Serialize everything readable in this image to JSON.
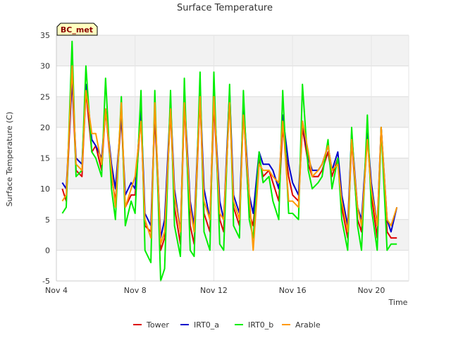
{
  "chart_data": {
    "type": "line",
    "title": "Surface Temperature",
    "xlabel": "Time",
    "ylabel": "Surface Temperature (C)",
    "site_badge": "BC_met",
    "x_unit": "day of November",
    "xlim": [
      4.0,
      21.9
    ],
    "ylim": [
      -5,
      35
    ],
    "y_ticks": [
      -5,
      0,
      5,
      10,
      15,
      20,
      25,
      30,
      35
    ],
    "x_ticks": [
      {
        "value": 4,
        "label": "Nov 4"
      },
      {
        "value": 8,
        "label": "Nov 8"
      },
      {
        "value": 12,
        "label": "Nov 12"
      },
      {
        "value": 16,
        "label": "Nov 16"
      },
      {
        "value": 20,
        "label": "Nov 20"
      }
    ],
    "grid": true,
    "band_shading": true,
    "legend_position": "bottom",
    "series": [
      {
        "name": "Tower",
        "color": "#dd0000",
        "x": [
          4.3,
          4.5,
          4.8,
          5.0,
          5.3,
          5.5,
          5.8,
          6.0,
          6.3,
          6.5,
          6.8,
          7.0,
          7.3,
          7.5,
          7.8,
          8.0,
          8.3,
          8.5,
          8.8,
          9.0,
          9.3,
          9.5,
          9.8,
          10.0,
          10.3,
          10.5,
          10.8,
          11.0,
          11.3,
          11.5,
          11.8,
          12.0,
          12.3,
          12.5,
          12.8,
          13.0,
          13.3,
          13.5,
          13.8,
          14.0,
          14.3,
          14.5,
          14.8,
          15.0,
          15.3,
          15.5,
          15.8,
          16.0,
          16.3,
          16.5,
          16.8,
          17.0,
          17.3,
          17.5,
          17.8,
          18.0,
          18.3,
          18.5,
          18.8,
          19.0,
          19.3,
          19.5,
          19.8,
          20.0,
          20.3,
          20.5,
          20.8,
          21.0,
          21.3
        ],
        "values": [
          10,
          8,
          28,
          13,
          12,
          26,
          16,
          17,
          13,
          23,
          12,
          8,
          22,
          7,
          9,
          9,
          22,
          4,
          3,
          22,
          0,
          2,
          23,
          7,
          1,
          24,
          4,
          1,
          25,
          6,
          3,
          24,
          5,
          3,
          25,
          7,
          4,
          23,
          6,
          4,
          15,
          12,
          13,
          11,
          8,
          20,
          12,
          9,
          8,
          20,
          14,
          12,
          12,
          13,
          16,
          12,
          15,
          7,
          2,
          18,
          5,
          3,
          19,
          9,
          2,
          20,
          3,
          2,
          2
        ]
      },
      {
        "name": "IRT0_a",
        "color": "#0000cc",
        "x": [
          4.3,
          4.5,
          4.8,
          5.0,
          5.3,
          5.5,
          5.8,
          6.0,
          6.3,
          6.5,
          6.8,
          7.0,
          7.3,
          7.5,
          7.8,
          8.0,
          8.3,
          8.5,
          8.8,
          9.0,
          9.3,
          9.5,
          9.8,
          10.0,
          10.3,
          10.5,
          10.8,
          11.0,
          11.3,
          11.5,
          11.8,
          12.0,
          12.3,
          12.5,
          12.8,
          13.0,
          13.3,
          13.5,
          13.8,
          14.0,
          14.3,
          14.5,
          14.8,
          15.0,
          15.3,
          15.5,
          15.8,
          16.0,
          16.3,
          16.5,
          16.8,
          17.0,
          17.3,
          17.5,
          17.8,
          18.0,
          18.3,
          18.5,
          18.8,
          19.0,
          19.3,
          19.5,
          19.8,
          20.0,
          20.3,
          20.5,
          20.8,
          21.0,
          21.3
        ],
        "values": [
          11,
          10,
          28,
          15,
          14,
          27,
          18,
          17,
          15,
          23,
          14,
          10,
          22,
          9,
          11,
          10,
          23,
          6,
          4,
          23,
          2,
          5,
          24,
          10,
          3,
          25,
          8,
          4,
          26,
          10,
          5,
          25,
          8,
          5,
          26,
          9,
          6,
          24,
          9,
          6,
          16,
          14,
          14,
          13,
          10,
          22,
          14,
          11,
          9,
          21,
          15,
          13,
          13,
          14,
          17,
          13,
          16,
          9,
          4,
          19,
          7,
          5,
          19,
          11,
          4,
          20,
          5,
          3,
          7
        ]
      },
      {
        "name": "IRT0_b",
        "color": "#00ee00",
        "x": [
          4.3,
          4.5,
          4.8,
          5.0,
          5.3,
          5.5,
          5.8,
          6.0,
          6.3,
          6.5,
          6.8,
          7.0,
          7.3,
          7.5,
          7.8,
          8.0,
          8.3,
          8.5,
          8.8,
          9.0,
          9.3,
          9.5,
          9.8,
          10.0,
          10.3,
          10.5,
          10.8,
          11.0,
          11.3,
          11.5,
          11.8,
          12.0,
          12.3,
          12.5,
          12.8,
          13.0,
          13.3,
          13.5,
          13.8,
          14.0,
          14.3,
          14.5,
          14.8,
          15.0,
          15.3,
          15.5,
          15.8,
          16.0,
          16.3,
          16.5,
          16.8,
          17.0,
          17.3,
          17.5,
          17.8,
          18.0,
          18.3,
          18.5,
          18.8,
          19.0,
          19.3,
          19.5,
          19.8,
          20.0,
          20.3,
          20.5,
          20.8,
          21.0,
          21.3
        ],
        "values": [
          6,
          7,
          34,
          12,
          13,
          30,
          16,
          15,
          12,
          28,
          10,
          5,
          25,
          4,
          8,
          6,
          26,
          0,
          -2,
          26,
          -5,
          -3,
          26,
          4,
          -1,
          28,
          0,
          -1,
          29,
          3,
          0,
          29,
          1,
          0,
          27,
          4,
          2,
          26,
          5,
          2,
          16,
          11,
          12,
          8,
          5,
          26,
          6,
          6,
          5,
          27,
          13,
          10,
          11,
          12,
          18,
          10,
          15,
          5,
          0,
          20,
          4,
          0,
          22,
          7,
          0,
          20,
          0,
          1,
          1
        ]
      },
      {
        "name": "Arable",
        "color": "#ff9900",
        "x": [
          4.3,
          4.5,
          4.8,
          5.0,
          5.3,
          5.5,
          5.8,
          6.0,
          6.3,
          6.5,
          6.8,
          7.0,
          7.3,
          7.5,
          7.8,
          8.0,
          8.3,
          8.5,
          8.8,
          9.0,
          9.3,
          9.5,
          9.8,
          10.0,
          10.3,
          10.5,
          10.8,
          11.0,
          11.3,
          11.5,
          11.8,
          12.0,
          12.3,
          12.5,
          12.8,
          13.0,
          13.3,
          13.5,
          13.8,
          14.0,
          14.3,
          14.5,
          14.8,
          15.0,
          15.3,
          15.5,
          15.8,
          16.0,
          16.3,
          16.5,
          16.8,
          17.0,
          17.3,
          17.5,
          17.8,
          18.0,
          18.3,
          18.5,
          18.8,
          19.0,
          19.3,
          19.5,
          19.8,
          20.0,
          20.3,
          20.5,
          20.8,
          21.0,
          21.3
        ],
        "values": [
          8,
          9,
          30,
          14,
          13,
          26,
          19,
          19,
          14,
          23,
          13,
          7,
          24,
          7,
          10,
          12,
          21,
          5,
          2,
          24,
          1,
          3,
          23,
          9,
          3,
          24,
          7,
          3,
          25,
          8,
          5,
          25,
          6,
          5,
          24,
          8,
          5,
          22,
          9,
          0,
          14,
          13,
          13,
          12,
          11,
          21,
          8,
          8,
          7,
          21,
          16,
          12,
          13,
          14,
          17,
          13,
          14,
          8,
          3,
          18,
          7,
          4,
          18,
          10,
          4,
          20,
          5,
          4,
          7
        ]
      }
    ]
  }
}
